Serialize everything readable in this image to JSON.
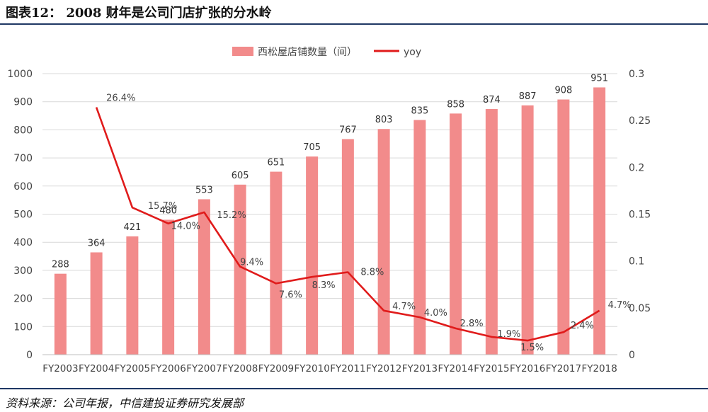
{
  "header": {
    "title": "图表12： 2008 财年是公司门店扩张的分水岭"
  },
  "footer": {
    "source": "资料来源：公司年报，中信建投证券研究发展部"
  },
  "colors": {
    "bar": "#f28b8b",
    "line": "#e01b1b",
    "grid": "#d9d9d9",
    "rule": "#1f3864"
  },
  "chart_data": {
    "type": "bar",
    "categories": [
      "FY2003",
      "FY2004",
      "FY2005",
      "FY2006",
      "FY2007",
      "FY2008",
      "FY2009",
      "FY2010",
      "FY2011",
      "FY2012",
      "FY2013",
      "FY2014",
      "FY2015",
      "FY2016",
      "FY2017",
      "FY2018"
    ],
    "series": [
      {
        "name": "西松屋店铺数量（间）",
        "type": "bar",
        "axis": "left",
        "values": [
          288,
          364,
          421,
          480,
          553,
          605,
          651,
          705,
          767,
          803,
          835,
          858,
          874,
          887,
          908,
          951
        ],
        "labels": [
          "288",
          "364",
          "421",
          "480",
          "553",
          "605",
          "651",
          "705",
          "767",
          "803",
          "835",
          "858",
          "874",
          "887",
          "908",
          "951"
        ]
      },
      {
        "name": "yoy",
        "type": "line",
        "axis": "right",
        "values": [
          null,
          0.264,
          0.157,
          0.14,
          0.152,
          0.094,
          0.076,
          0.083,
          0.088,
          0.047,
          0.04,
          0.028,
          0.019,
          0.015,
          0.024,
          0.047
        ],
        "labels": [
          "",
          "26.4%",
          "15.7%",
          "14.0%",
          "15.2%",
          "9.4%",
          "7.6%",
          "8.3%",
          "8.8%",
          "4.7%",
          "4.0%",
          "2.8%",
          "1.9%",
          "1.5%",
          "2.4%",
          "4.7%"
        ]
      }
    ],
    "y_left": {
      "range": [
        0,
        1000
      ],
      "ticks": [
        "0",
        "100",
        "200",
        "300",
        "400",
        "500",
        "600",
        "700",
        "800",
        "900",
        "1000"
      ]
    },
    "y_right": {
      "range": [
        0,
        0.3
      ],
      "ticks": [
        "0",
        "0.05",
        "0.1",
        "0.15",
        "0.2",
        "0.25",
        "0.3"
      ]
    },
    "grid": true,
    "legend": "top-center"
  }
}
